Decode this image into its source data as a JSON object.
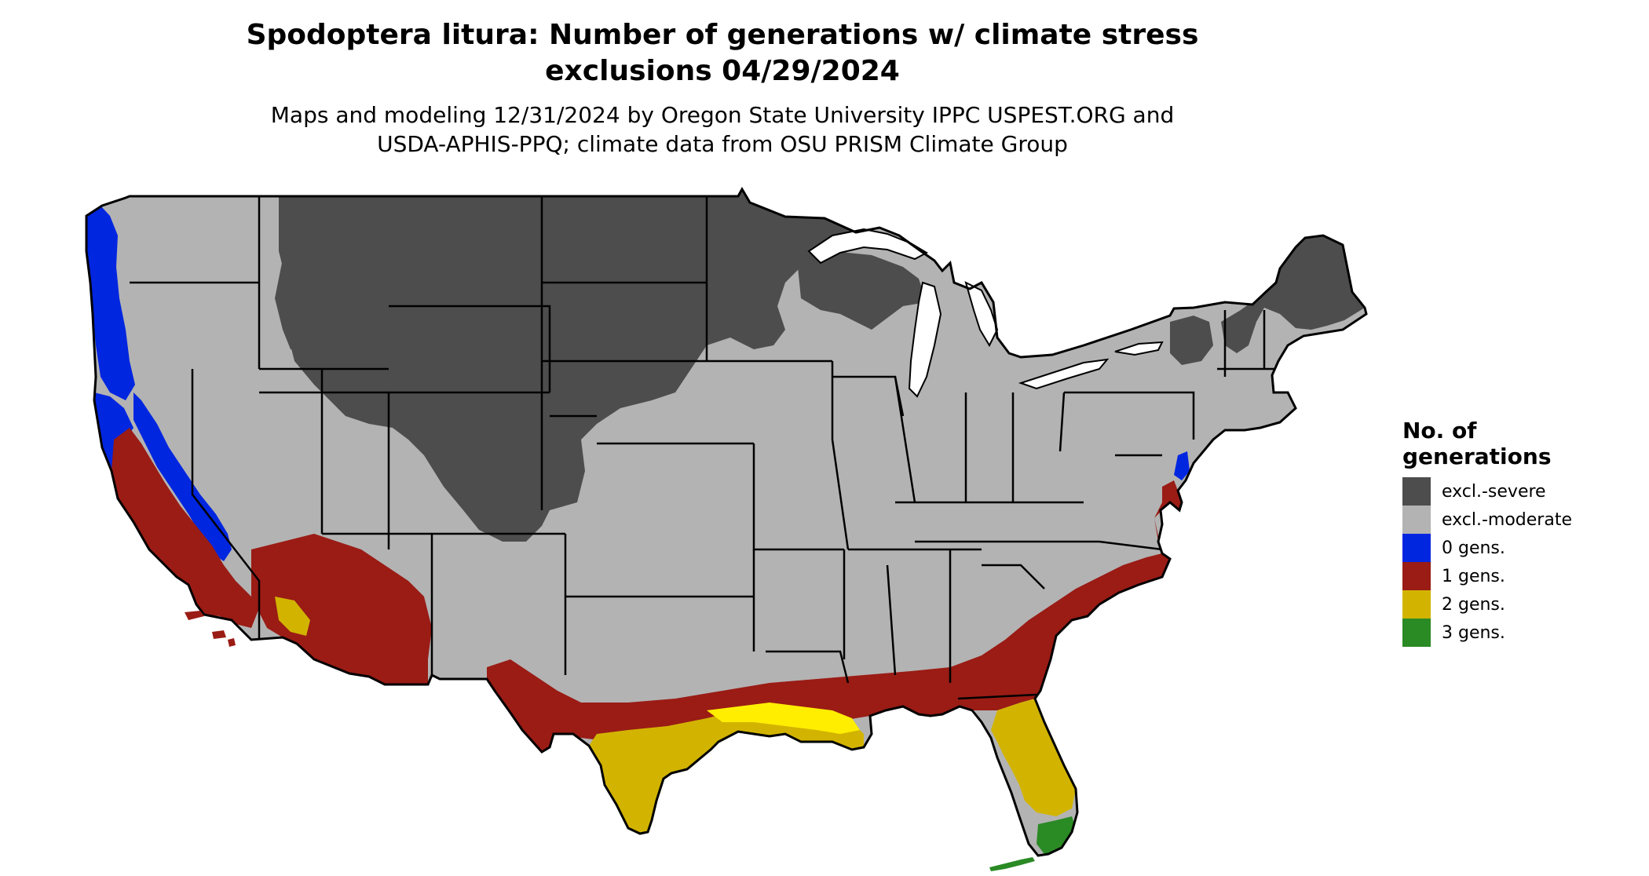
{
  "title": {
    "line1": "Spodoptera litura: Number of generations w/ climate stress",
    "line2": "exclusions 04/29/2024"
  },
  "subtitle": {
    "line1": "Maps and modeling 12/31/2024 by Oregon State University IPPC USPEST.ORG and",
    "line2": "USDA-APHIS-PPQ; climate data from OSU PRISM Climate Group"
  },
  "legend": {
    "title_line1": "No. of",
    "title_line2": "generations",
    "items": [
      {
        "label": "excl.-severe",
        "color": "#4d4d4d"
      },
      {
        "label": "excl.-moderate",
        "color": "#b3b3b3"
      },
      {
        "label": "0 gens.",
        "color": "#0026e0"
      },
      {
        "label": "1 gens.",
        "color": "#9a1c15"
      },
      {
        "label": "2 gens.",
        "color": "#d2b400"
      },
      {
        "label": "3 gens.",
        "color": "#2a8a24"
      }
    ]
  },
  "colors": {
    "excl_severe": "#4d4d4d",
    "excl_moderate": "#b3b3b3",
    "gens_0": "#0026e0",
    "gens_1": "#9a1c15",
    "gens_2": "#d2b400",
    "gens_2_bright": "#ffee00",
    "gens_3": "#2a8a24",
    "border": "#000000",
    "water": "#ffffff"
  }
}
